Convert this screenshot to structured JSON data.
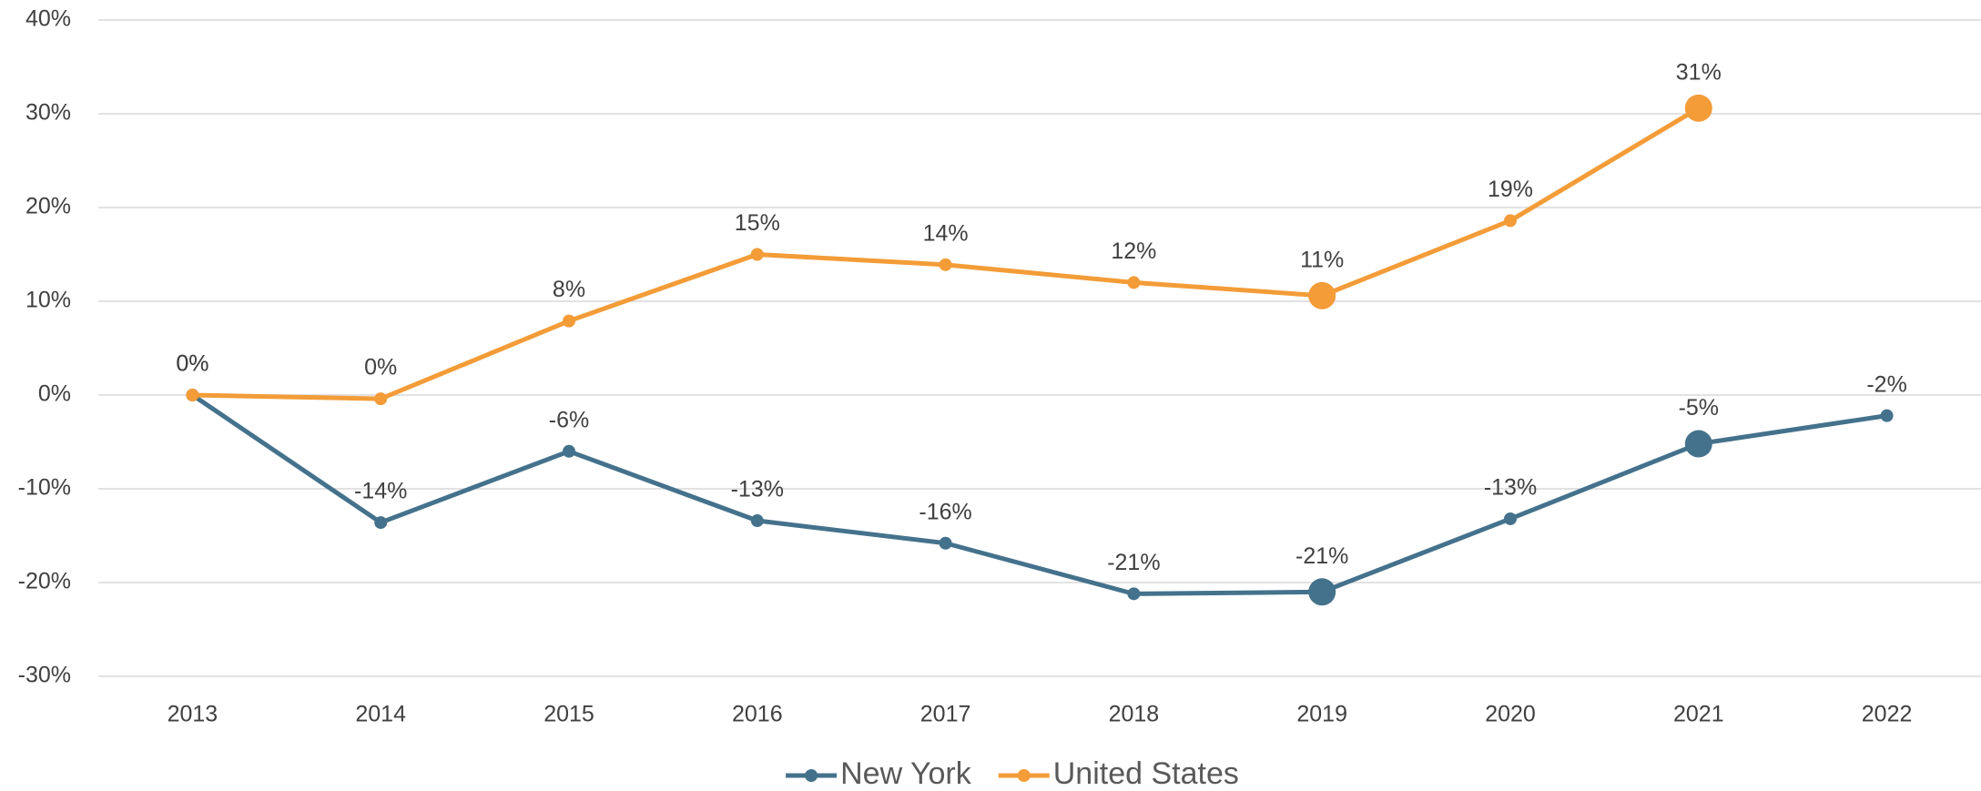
{
  "chart_data": {
    "type": "line",
    "categories": [
      "2013",
      "2014",
      "2015",
      "2016",
      "2017",
      "2018",
      "2019",
      "2020",
      "2021",
      "2022"
    ],
    "series": [
      {
        "name": "New York",
        "color": "#44728c",
        "values": [
          0,
          -13.6,
          -6,
          -13.4,
          -15.8,
          -21.2,
          -21,
          -13.2,
          -5.2,
          -2.2
        ],
        "value_labels": [
          "0%",
          "-14%",
          "-6%",
          "-13%",
          "-16%",
          "-21%",
          "-21%",
          "-13%",
          "-5%",
          "-2%"
        ]
      },
      {
        "name": "United States",
        "color": "#f39c38",
        "values": [
          0,
          -0.4,
          7.9,
          15,
          13.9,
          12,
          10.6,
          18.6,
          30.6,
          null
        ],
        "value_labels": [
          "0%",
          "0%",
          "8%",
          "15%",
          "14%",
          "12%",
          "11%",
          "19%",
          "31%",
          null
        ]
      }
    ],
    "highlight_indices": [
      6,
      8
    ],
    "ylim": [
      -30,
      40
    ],
    "yticks": [
      {
        "value": -30,
        "label": "-30%"
      },
      {
        "value": -20,
        "label": "-20%"
      },
      {
        "value": -10,
        "label": "-10%"
      },
      {
        "value": 0,
        "label": "0%"
      },
      {
        "value": 10,
        "label": "10%"
      },
      {
        "value": 20,
        "label": "20%"
      },
      {
        "value": 30,
        "label": "30%"
      },
      {
        "value": 40,
        "label": "40%"
      }
    ],
    "grid": true,
    "legend": "bottom"
  }
}
